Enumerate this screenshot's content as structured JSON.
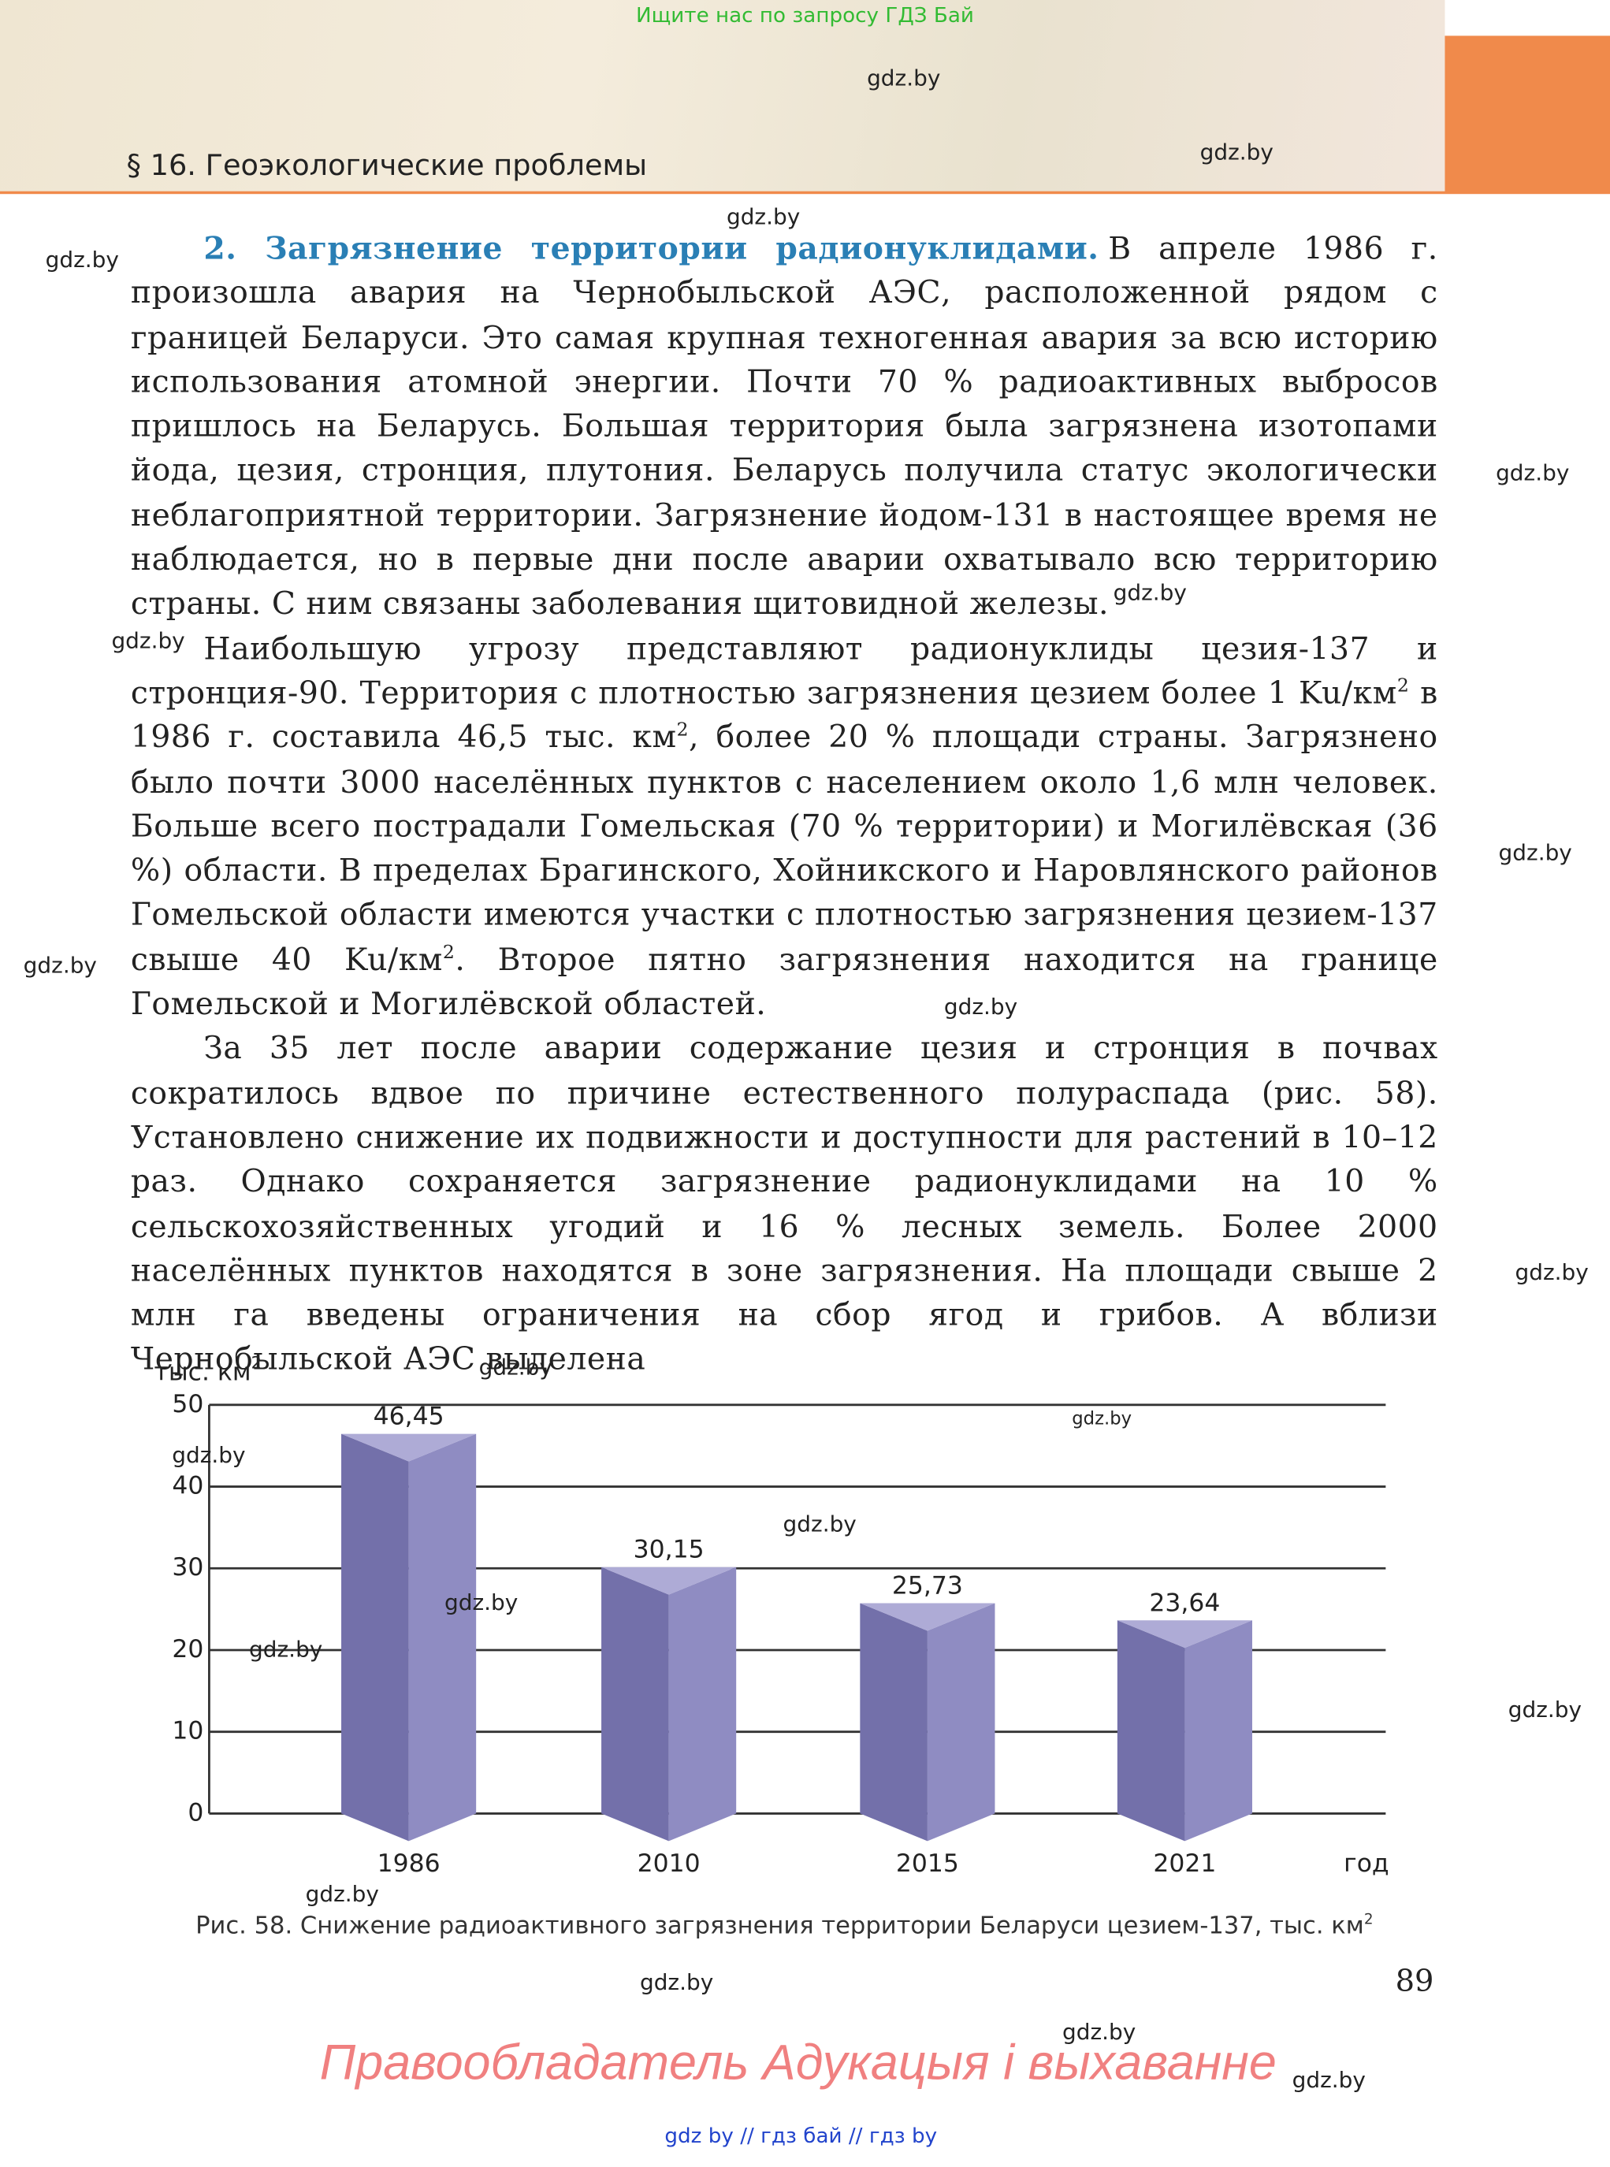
{
  "top_banner": "Ищите нас по запросу ГДЗ Бай",
  "header": {
    "title": "§ 16. Геоэкологические проблемы"
  },
  "paragraphs": [
    [
      {
        "text": "2. Загрязнение территории радионуклидами.",
        "style": "heading"
      },
      {
        "text": "В апреле 1986 г. произошла авария на Чернобыльской АЭС, расположенной рядом с границей Беларуси. Это самая крупная техногенная авария за всю историю использования атомной энергии. Почти 70 % радиоактивных выбросов пришлось на Беларусь. Большая территория была загрязнена изотопами йода, цезия, стронция, плутония. Беларусь получила статус экологически неблагоприятной территории. Загрязнение йодом-131 в настоящее время не наблюдается, но в первые дни после аварии охватывало всю территорию страны. С ним связаны заболевания щитовидной железы."
      }
    ],
    [
      {
        "text": "Наибольшую угрозу представляют радионуклиды цезия-137 и стронция-90. Территория с плотностью загрязнения цезием более 1 Ku/км"
      },
      {
        "text": "2",
        "style": "sup"
      },
      {
        "text": " в 1986 г. составила 46,5 тыс. км"
      },
      {
        "text": "2",
        "style": "sup"
      },
      {
        "text": ", более 20 % площади страны. Загрязнено было почти 3000 населённых пунктов с населением около 1,6 млн человек. Больше всего пострадали Гомельская (70 % территории) и Могилёвская (36 %) области. В пределах Брагинского, Хойникского и Наровлянского районов Гомельской области имеются участки с плотностью загрязнения цезием-137 свыше 40 Ku/км"
      },
      {
        "text": "2",
        "style": "sup"
      },
      {
        "text": ". Второе пятно загрязнения находится на границе Гомельской и Могилёвской областей."
      }
    ],
    [
      {
        "text": "За 35 лет после аварии содержание цезия и стронция в почвах сократилось вдвое по причине естественного полураспада (рис. 58). Установлено снижение их подвижности и доступности для растений в 10–12 раз. Однако сохраняется загрязнение радионуклидами на 10 % сельскохозяйственных угодий и 16 % лесных земель. Более 2000 населённых пунктов находятся в зоне загрязнения. На площади свыше 2 млн га введены ограничения на сбор ягод и грибов. А вблизи Чернобыльской АЭС выделена"
      }
    ]
  ],
  "chart_data": {
    "type": "bar",
    "y_label": "тыс. км",
    "y_label_sup": "2",
    "x_label": "год",
    "categories": [
      "1986",
      "2010",
      "2015",
      "2021"
    ],
    "values": [
      46.45,
      30.15,
      25.73,
      23.64
    ],
    "value_labels": [
      "46,45",
      "30,15",
      "25,73",
      "23,64"
    ],
    "colors": [
      "#7370aa",
      "#8f8cc2",
      "#aeabd6"
    ],
    "ylim": [
      0,
      50
    ],
    "yticks": [
      0,
      10,
      20,
      30,
      40,
      50
    ],
    "grid": true,
    "caption": "Рис. 58. Снижение радиоактивного загрязнения территории Беларуси цезием-137, тыс. км",
    "caption_sup": "2"
  },
  "page_number": "89",
  "footer": "Правообладатель Адукацыя і выхаванне",
  "bottom_links": "gdz by  //  гдз бай  //  гдз by",
  "watermarks": [
    "gdz.by",
    "gdz.by",
    "gdz.by",
    "gdz.by",
    "gdz.by",
    "gdz.by",
    "gdz.by",
    "gdz.by",
    "gdz.by",
    "gdz.by",
    "gdz.by",
    "gdz.by",
    "gdz.by",
    "gdz.by",
    "gdz.by",
    "gdz.by",
    "gdz.by",
    "gdz.by",
    "gdz.by",
    "gdz.by",
    "gdz.by",
    "gdz.by"
  ]
}
